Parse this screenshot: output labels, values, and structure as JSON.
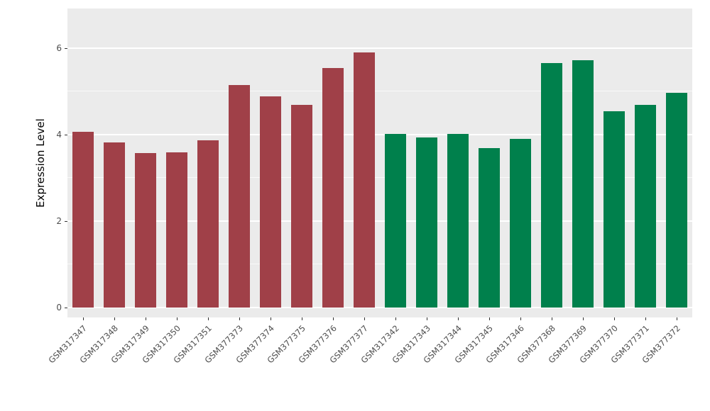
{
  "chart_data": {
    "type": "bar",
    "title": "",
    "xlabel": "",
    "ylabel": "Expression Level",
    "ylim": [
      0,
      6.9
    ],
    "yticks": [
      0,
      2,
      4,
      6
    ],
    "minor_gridlines": [
      1,
      3,
      5
    ],
    "grid": true,
    "legend_position": "none",
    "panel_bg": "#EBEBEB",
    "grid_color": "#FFFFFF",
    "tick_color": "#333333",
    "axis_text_color": "#4D4D4D",
    "categories": [
      "GSM317347",
      "GSM317348",
      "GSM317349",
      "GSM317350",
      "GSM317351",
      "GSM377373",
      "GSM377374",
      "GSM377375",
      "GSM377376",
      "GSM377377",
      "GSM317342",
      "GSM317343",
      "GSM317344",
      "GSM317345",
      "GSM317346",
      "GSM377368",
      "GSM377369",
      "GSM377370",
      "GSM377371",
      "GSM377372"
    ],
    "values": [
      4.07,
      3.82,
      3.57,
      3.59,
      3.87,
      5.15,
      4.89,
      4.69,
      5.54,
      5.9,
      4.02,
      3.93,
      4.02,
      3.69,
      3.9,
      5.66,
      5.72,
      4.54,
      4.69,
      4.97
    ],
    "bar_groups": [
      "maroon",
      "maroon",
      "maroon",
      "maroon",
      "maroon",
      "maroon",
      "maroon",
      "maroon",
      "maroon",
      "maroon",
      "green",
      "green",
      "green",
      "green",
      "green",
      "green",
      "green",
      "green",
      "green",
      "green"
    ],
    "group_colors": {
      "maroon": "#A04048",
      "green": "#00804C"
    }
  }
}
